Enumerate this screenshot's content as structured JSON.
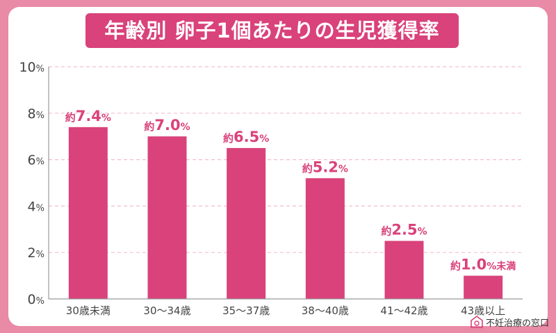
{
  "title": "年齢別 卵子1個あたりの生児獲得率",
  "brand": {
    "name": "不妊治療の窓口",
    "logo_icon": "house-logo-icon"
  },
  "colors": {
    "bar": "#d9427a",
    "label": "#d9427a",
    "frame": "#e98aa6",
    "grid": "#f2bdd0",
    "axis": "#999999",
    "tick": "#444444"
  },
  "chart_data": {
    "type": "bar",
    "categories": [
      "30歳未満",
      "30～34歳",
      "35～37歳",
      "38～40歳",
      "41～42歳",
      "43歳以上"
    ],
    "values": [
      7.4,
      7.0,
      6.5,
      5.2,
      2.5,
      1.0
    ],
    "label_prefix": "約",
    "label_suffix": "%",
    "label_extra": [
      "",
      "",
      "",
      "",
      "",
      "未満"
    ],
    "y_ticks": [
      0,
      2,
      4,
      6,
      8,
      10
    ],
    "y_tick_suffix": "%",
    "ylim": [
      0,
      10
    ],
    "grid": true,
    "title": "年齢別 卵子1個あたりの生児獲得率",
    "xlabel": "",
    "ylabel": ""
  }
}
